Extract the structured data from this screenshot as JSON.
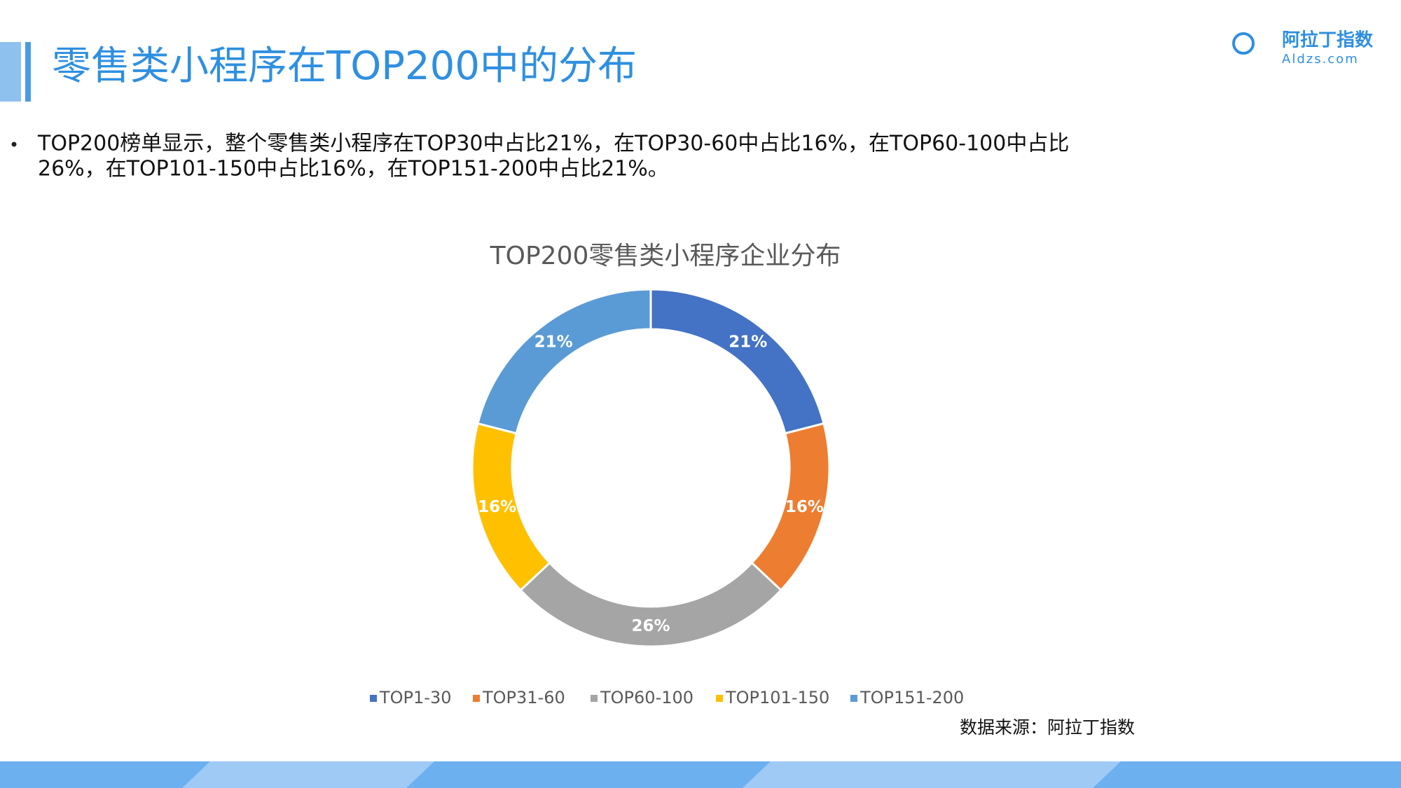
{
  "header": {
    "title": "零售类小程序在TOP200中的分布"
  },
  "logo": {
    "name": "阿拉丁指数",
    "site": "Aldzs.com"
  },
  "bullet": {
    "lines": [
      "TOP200榜单显示，整个零售类小程序在TOP30中占比21%，在TOP30-60中占比16%，在TOP60-100中占比",
      "26%，在TOP101-150中占比16%，在TOP151-200中占比21%。"
    ]
  },
  "chart_data": {
    "type": "donut",
    "title": "TOP200零售类小程序企业分布",
    "categories": [
      "TOP1-30",
      "TOP31-60",
      "TOP60-100",
      "TOP101-150",
      "TOP151-200"
    ],
    "values": [
      21,
      16,
      26,
      16,
      21
    ],
    "value_labels": [
      "21%",
      "16%",
      "26%",
      "16%",
      "21%"
    ],
    "colors": [
      "#4472c4",
      "#ed7d31",
      "#a5a5a5",
      "#ffc000",
      "#5b9bd5"
    ],
    "legend": "bottom"
  },
  "source": "数据来源：阿拉丁指数"
}
